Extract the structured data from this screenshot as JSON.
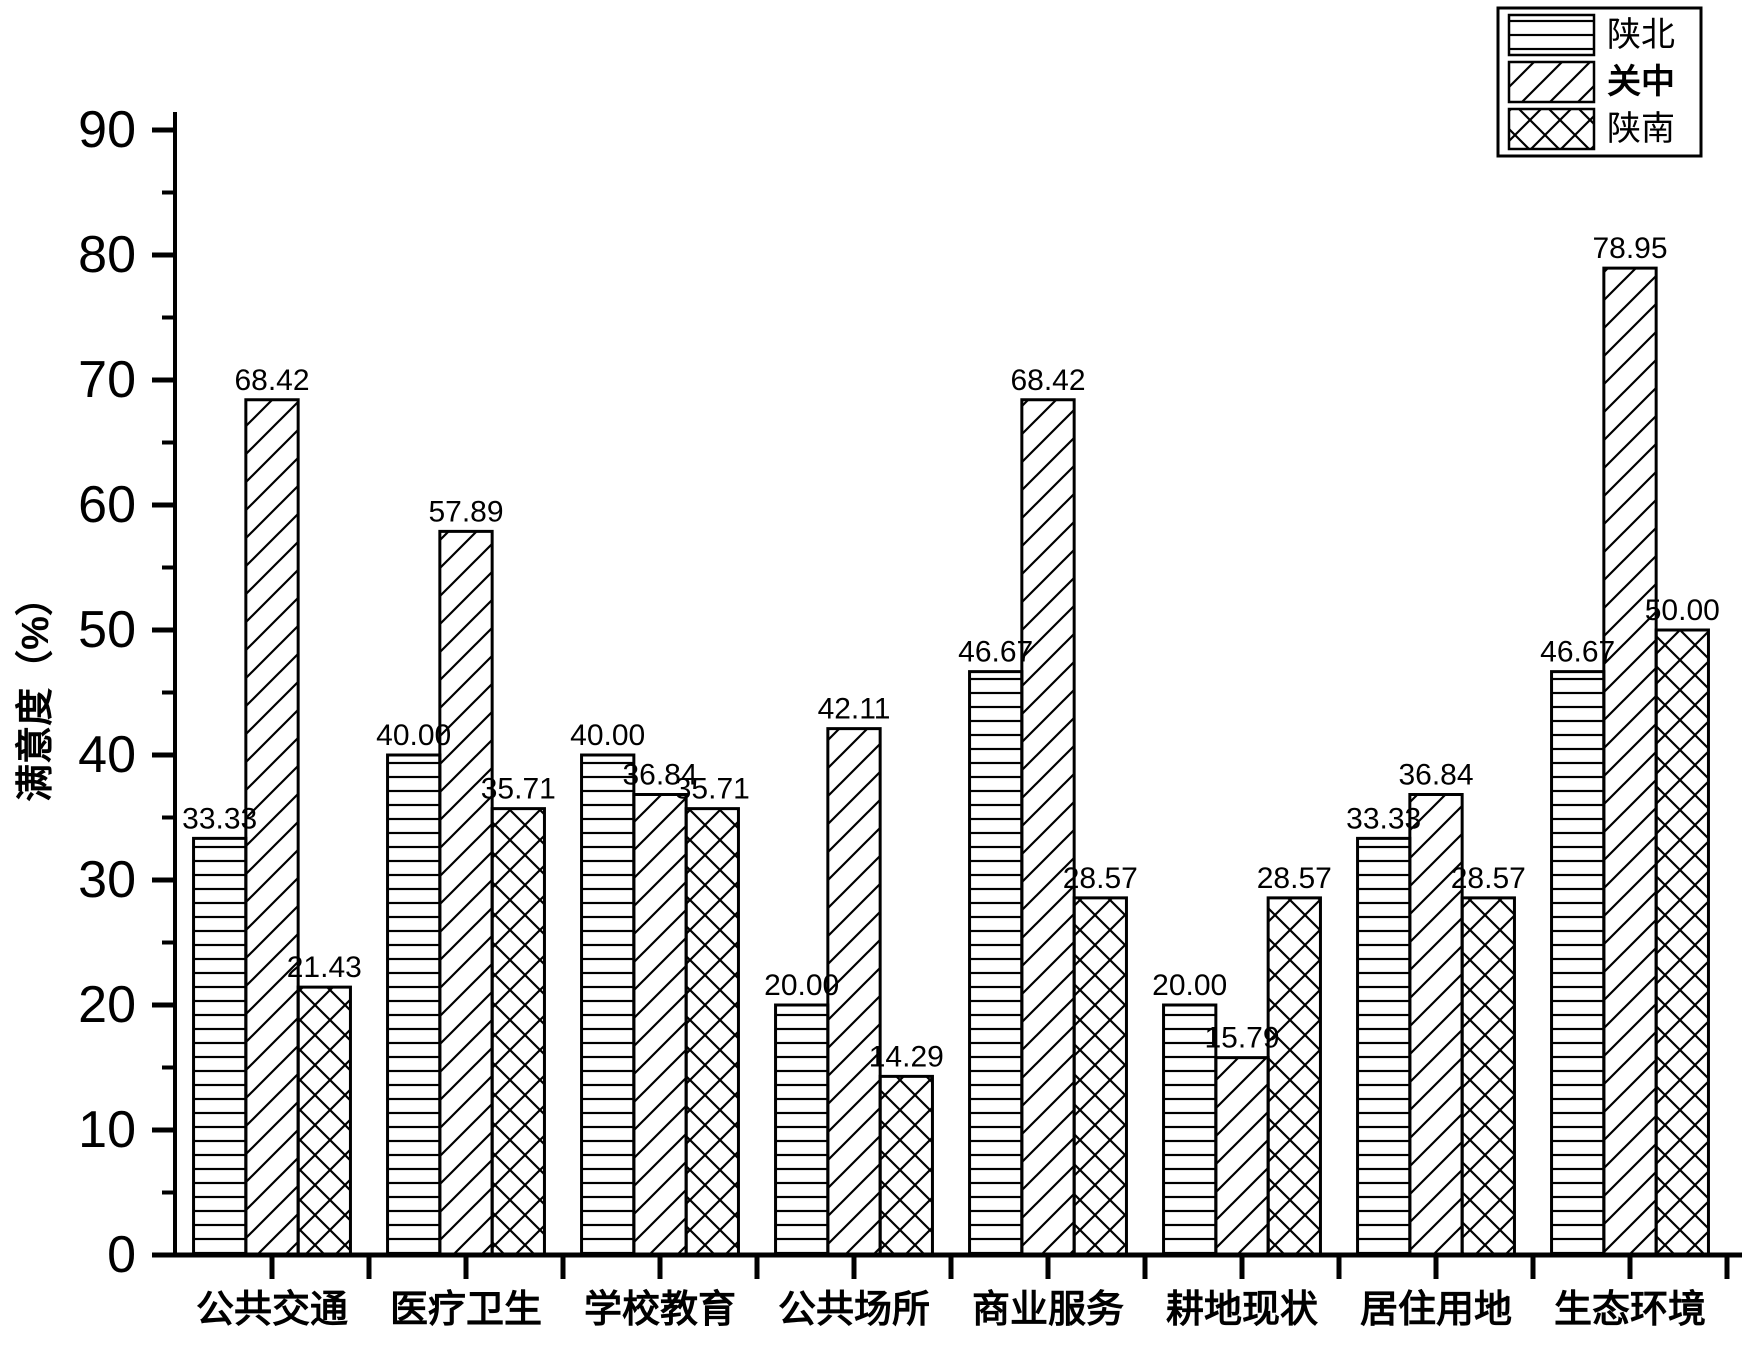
{
  "chart_data": {
    "type": "bar",
    "title": "",
    "xlabel": "",
    "ylabel": "满意度（%）",
    "ylim": [
      0,
      90
    ],
    "ytick_step": 10,
    "yminor_step": 5,
    "grid": false,
    "legend_position": "top-right",
    "value_label_decimals": 2,
    "categories": [
      "公共交通",
      "医疗卫生",
      "学校教育",
      "公共场所",
      "商业服务",
      "耕地现状",
      "居住用地",
      "生态环境"
    ],
    "series": [
      {
        "name": "陕北",
        "pattern": "horizontal-lines",
        "bold": false,
        "values": [
          33.33,
          40.0,
          40.0,
          20.0,
          46.67,
          20.0,
          33.33,
          46.67
        ]
      },
      {
        "name": "关中",
        "pattern": "diagonal-lines",
        "bold": true,
        "values": [
          68.42,
          57.89,
          36.84,
          42.11,
          68.42,
          15.79,
          36.84,
          78.95
        ]
      },
      {
        "name": "陕南",
        "pattern": "crosshatch",
        "bold": false,
        "values": [
          21.43,
          35.71,
          35.71,
          14.29,
          28.57,
          28.57,
          28.57,
          50.0
        ]
      }
    ],
    "colors": {
      "foreground": "#000000",
      "background": "#ffffff"
    }
  }
}
